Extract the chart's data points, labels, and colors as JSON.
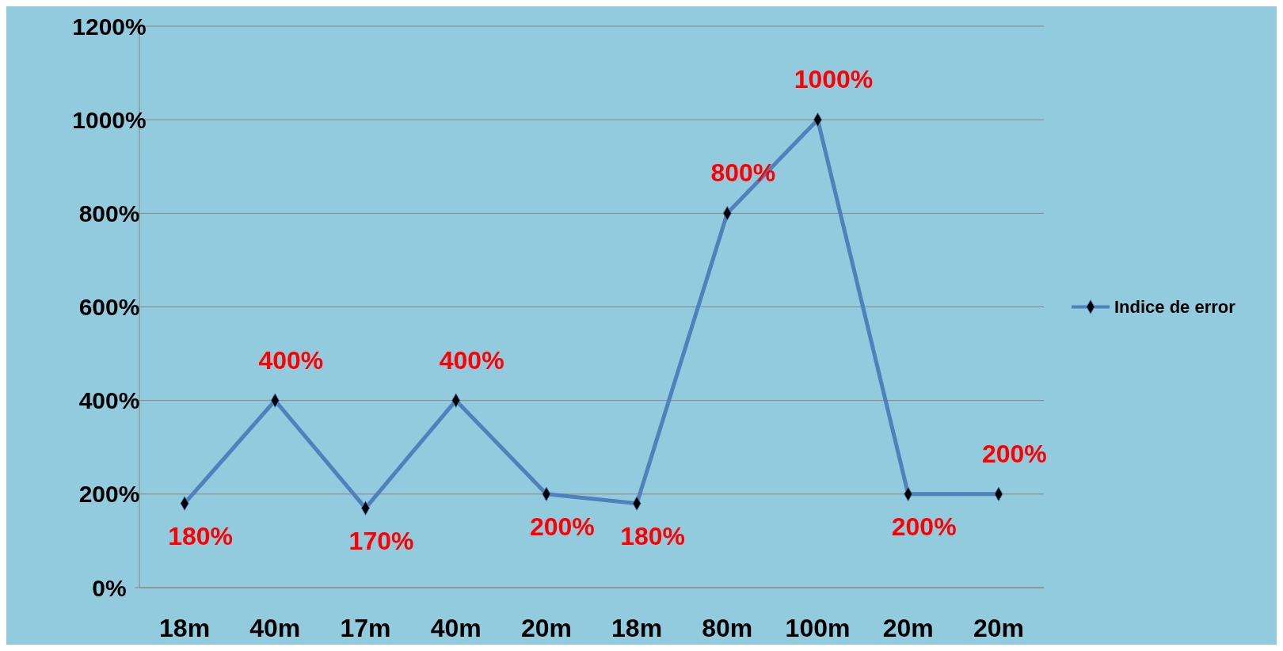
{
  "chart_data": {
    "type": "line",
    "categories": [
      "18m",
      "40m",
      "17m",
      "40m",
      "20m",
      "18m",
      "80m",
      "100m",
      "20m",
      "20m"
    ],
    "series": [
      {
        "name": "Indice de error",
        "color": "#4f81bd",
        "values": [
          180,
          400,
          170,
          400,
          200,
          180,
          800,
          1000,
          200,
          200
        ],
        "value_labels": [
          "180%",
          "400%",
          "170%",
          "400%",
          "200%",
          "180%",
          "800%",
          "1000%",
          "200%",
          "200%"
        ]
      }
    ],
    "ylim": [
      0,
      1200
    ],
    "yticks": [
      {
        "value": 0,
        "label": "0%"
      },
      {
        "value": 200,
        "label": "200%"
      },
      {
        "value": 400,
        "label": "400%"
      },
      {
        "value": 600,
        "label": "600%"
      },
      {
        "value": 800,
        "label": "800%"
      },
      {
        "value": 1000,
        "label": "1000%"
      },
      {
        "value": 1200,
        "label": "1200%"
      }
    ],
    "grid": "y",
    "legend": "right",
    "marker": "diamond",
    "line_style": "solid"
  }
}
